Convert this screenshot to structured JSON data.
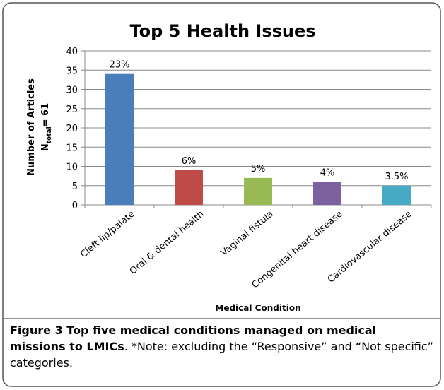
{
  "chart_data": {
    "type": "bar",
    "title": "Top 5 Health Issues",
    "categories": [
      "Cleft lip/palate",
      "Oral & dental health",
      "Vaginal fistula",
      "Congenital heart disease",
      "Cardiovascular disease"
    ],
    "values": [
      34,
      9,
      7,
      6,
      5
    ],
    "annotations": [
      "23%",
      "6%",
      "5%",
      "4%",
      "3.5%"
    ],
    "colors": [
      "#4a7ebb",
      "#be4b48",
      "#98b954",
      "#7d60a0",
      "#46aac5"
    ],
    "ylim": [
      0,
      40
    ],
    "yticks": [
      0,
      5,
      10,
      15,
      20,
      25,
      30,
      35,
      40
    ],
    "grid": true,
    "ylabel": "Number of Articles",
    "ylabel_note": {
      "base": "N",
      "sub": "total",
      "rest": "= 61"
    },
    "xlabel": "Medical Condition"
  },
  "caption": {
    "bold": "Figure 3 Top five medical conditions managed on medical missions to LMICs",
    "rest": ". *Note: excluding the “Responsive” and “Not specific” categories."
  }
}
